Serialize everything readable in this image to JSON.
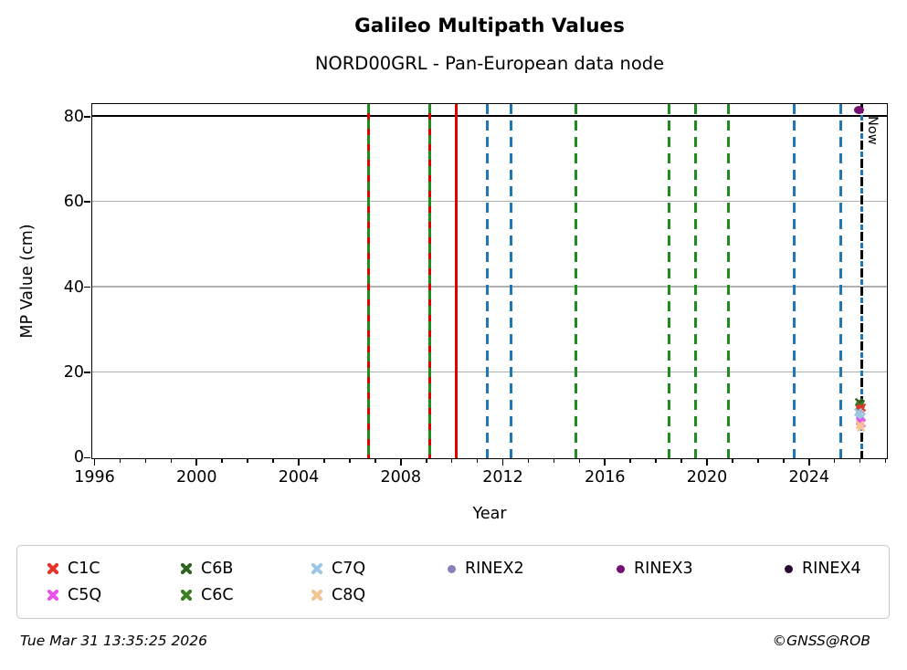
{
  "title": "Galileo Multipath Values",
  "subtitle": "NORD00GRL - Pan-European data node",
  "now_label": "Now",
  "footer": {
    "timestamp": "Tue Mar 31 13:35:25 2026",
    "credit": "©GNSS@ROB"
  },
  "colors": {
    "grid": "#b0b0b0",
    "threshold": "#000000",
    "event_green": "#1e8c1e",
    "event_blue": "#1f77b4",
    "event_red": "#e00000",
    "now_black": "#000000",
    "C1C": "#e8332a",
    "C5Q": "#ea52ea",
    "C6B": "#2f661f",
    "C6C": "#3c8024",
    "C7Q": "#9bc7e4",
    "C8Q": "#f5c493",
    "RINEX2": "#8781bb",
    "RINEX3": "#730f6e",
    "RINEX4": "#270b31"
  },
  "legend": [
    {
      "label": "C1C",
      "marker": "x",
      "color_key": "C1C"
    },
    {
      "label": "C6B",
      "marker": "x",
      "color_key": "C6B"
    },
    {
      "label": "C7Q",
      "marker": "x",
      "color_key": "C7Q"
    },
    {
      "label": "RINEX2",
      "marker": "dot",
      "color_key": "RINEX2"
    },
    {
      "label": "RINEX3",
      "marker": "dot",
      "color_key": "RINEX3"
    },
    {
      "label": "RINEX4",
      "marker": "dot",
      "color_key": "RINEX4"
    },
    {
      "label": "C5Q",
      "marker": "x",
      "color_key": "C5Q"
    },
    {
      "label": "C6C",
      "marker": "x",
      "color_key": "C6C"
    },
    {
      "label": "C8Q",
      "marker": "x",
      "color_key": "C8Q"
    }
  ],
  "chart_data": {
    "type": "scatter",
    "title": "Galileo Multipath Values",
    "subtitle": "NORD00GRL - Pan-European data node",
    "xlabel": "Year",
    "ylabel": "MP Value (cm)",
    "xlim": [
      1995.93,
      2027.03
    ],
    "ylim": [
      0,
      82.8
    ],
    "x_ticks_major": [
      1996,
      2000,
      2004,
      2008,
      2012,
      2016,
      2020,
      2024
    ],
    "x_minor_tick_years": [
      1996,
      2027
    ],
    "y_ticks": [
      0,
      20,
      40,
      60,
      80
    ],
    "y_gridlines": [
      20,
      40,
      60
    ],
    "grid": "horizontal-only",
    "threshold_line_y": 80,
    "legend_position": "below",
    "now_line_year": 2026.08,
    "event_lines": [
      {
        "year": 2006.76,
        "style": "green-red-dashed"
      },
      {
        "year": 2009.16,
        "style": "green-red-dashed"
      },
      {
        "year": 2010.19,
        "style": "red-solid"
      },
      {
        "year": 2011.42,
        "style": "blue-dashed"
      },
      {
        "year": 2012.33,
        "style": "blue-dashed"
      },
      {
        "year": 2014.88,
        "style": "green-dashed"
      },
      {
        "year": 2018.53,
        "style": "green-dashed"
      },
      {
        "year": 2019.58,
        "style": "green-dashed"
      },
      {
        "year": 2020.86,
        "style": "green-dashed"
      },
      {
        "year": 2023.44,
        "style": "blue-dashed"
      },
      {
        "year": 2025.28,
        "style": "blue-dashed"
      },
      {
        "year": 2026.08,
        "style": "now-black-blue-dashed"
      }
    ],
    "series": [
      {
        "name": "C6B",
        "marker": "x",
        "points": [
          [
            2025.97,
            14.2
          ],
          [
            2026.05,
            13.7
          ]
        ]
      },
      {
        "name": "C6C",
        "marker": "x",
        "points": [
          [
            2026.02,
            13.3
          ]
        ]
      },
      {
        "name": "C1C",
        "marker": "x",
        "points": [
          [
            2026.08,
            12.9
          ],
          [
            2026.0,
            12.5
          ]
        ]
      },
      {
        "name": "C7Q",
        "marker": "x",
        "points": [
          [
            2025.96,
            11.9
          ],
          [
            2026.02,
            11.4
          ],
          [
            2026.08,
            10.8
          ],
          [
            2026.0,
            10.3
          ]
        ]
      },
      {
        "name": "C5Q",
        "marker": "x",
        "points": [
          [
            2026.03,
            9.7
          ],
          [
            2026.08,
            9.3
          ]
        ]
      },
      {
        "name": "C8Q",
        "marker": "x",
        "points": [
          [
            2026.0,
            8.8
          ],
          [
            2026.05,
            8.2
          ]
        ]
      },
      {
        "name": "RINEX3",
        "marker": "dot",
        "points": [
          [
            2025.98,
            81.5
          ]
        ]
      }
    ]
  }
}
